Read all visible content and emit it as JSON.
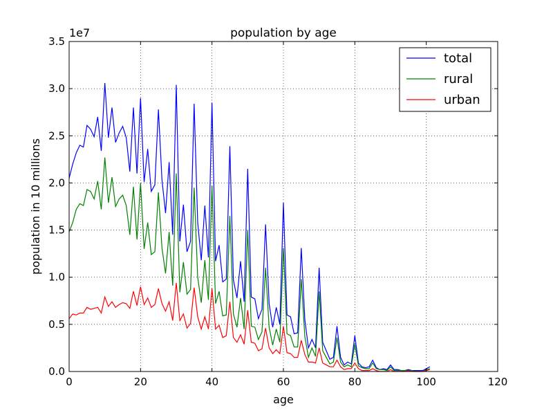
{
  "chart_data": {
    "type": "line",
    "title": "population by age",
    "xlabel": "age",
    "ylabel": "population in 10 millions",
    "y_multiplier": "1e7",
    "xlim": [
      0,
      120
    ],
    "ylim": [
      0,
      3.5
    ],
    "xticks": [
      0,
      20,
      40,
      60,
      80,
      100,
      120
    ],
    "xtick_labels": [
      "0",
      "20",
      "40",
      "60",
      "80",
      "100",
      "120"
    ],
    "yticks": [
      0,
      0.5,
      1.0,
      1.5,
      2.0,
      2.5,
      3.0,
      3.5
    ],
    "ytick_labels": [
      "0.0",
      "0.5",
      "1.0",
      "1.5",
      "2.0",
      "2.5",
      "3.0",
      "3.5"
    ],
    "grid": true,
    "legend_position": "top-right",
    "x": [
      0,
      1,
      2,
      3,
      4,
      5,
      6,
      7,
      8,
      9,
      10,
      11,
      12,
      13,
      14,
      15,
      16,
      17,
      18,
      19,
      20,
      21,
      22,
      23,
      24,
      25,
      26,
      27,
      28,
      29,
      30,
      31,
      32,
      33,
      34,
      35,
      36,
      37,
      38,
      39,
      40,
      41,
      42,
      43,
      44,
      45,
      46,
      47,
      48,
      49,
      50,
      51,
      52,
      53,
      54,
      55,
      56,
      57,
      58,
      59,
      60,
      61,
      62,
      63,
      64,
      65,
      66,
      67,
      68,
      69,
      70,
      71,
      72,
      73,
      74,
      75,
      76,
      77,
      78,
      79,
      80,
      81,
      82,
      83,
      84,
      85,
      86,
      87,
      88,
      89,
      90,
      91,
      92,
      93,
      94,
      95,
      96,
      97,
      98,
      99,
      100,
      101
    ],
    "series": [
      {
        "name": "total",
        "color": "#0000ff",
        "values": [
          2.05,
          2.2,
          2.32,
          2.4,
          2.38,
          2.61,
          2.57,
          2.49,
          2.7,
          2.34,
          3.06,
          2.48,
          2.8,
          2.43,
          2.53,
          2.6,
          2.48,
          2.12,
          2.8,
          2.1,
          2.9,
          2.01,
          2.36,
          1.91,
          1.98,
          2.78,
          2.03,
          1.68,
          2.22,
          1.45,
          3.04,
          1.38,
          1.77,
          1.27,
          1.38,
          2.84,
          1.58,
          1.18,
          1.76,
          1.21,
          2.85,
          1.17,
          1.34,
          0.95,
          0.98,
          2.39,
          0.97,
          0.78,
          1.17,
          0.74,
          2.15,
          0.79,
          0.77,
          0.56,
          0.66,
          1.56,
          0.72,
          0.47,
          0.68,
          0.5,
          1.79,
          0.6,
          0.58,
          0.4,
          0.41,
          1.31,
          0.55,
          0.25,
          0.34,
          0.25,
          1.1,
          0.31,
          0.22,
          0.13,
          0.15,
          0.48,
          0.15,
          0.07,
          0.1,
          0.08,
          0.38,
          0.09,
          0.05,
          0.04,
          0.05,
          0.12,
          0.04,
          0.02,
          0.03,
          0.02,
          0.07,
          0.02,
          0.02,
          0.01,
          0.01,
          0.02,
          0.01,
          0.01,
          0.01,
          0.01,
          0.03,
          0.05
        ]
      },
      {
        "name": "rural",
        "color": "#008000",
        "values": [
          1.48,
          1.58,
          1.72,
          1.78,
          1.76,
          1.93,
          1.91,
          1.83,
          2.02,
          1.72,
          2.27,
          1.79,
          2.06,
          1.75,
          1.83,
          1.87,
          1.76,
          1.45,
          1.96,
          1.4,
          2.0,
          1.3,
          1.58,
          1.24,
          1.27,
          1.9,
          1.31,
          1.04,
          1.48,
          0.91,
          2.1,
          0.84,
          1.16,
          0.82,
          0.87,
          1.95,
          1.0,
          0.73,
          1.18,
          0.76,
          1.97,
          0.72,
          0.85,
          0.59,
          0.6,
          1.65,
          0.61,
          0.47,
          0.78,
          0.45,
          1.5,
          0.48,
          0.47,
          0.34,
          0.42,
          1.1,
          0.47,
          0.28,
          0.45,
          0.31,
          1.31,
          0.4,
          0.38,
          0.26,
          0.26,
          0.98,
          0.37,
          0.15,
          0.25,
          0.16,
          0.85,
          0.22,
          0.15,
          0.08,
          0.1,
          0.36,
          0.1,
          0.05,
          0.07,
          0.05,
          0.29,
          0.06,
          0.04,
          0.03,
          0.03,
          0.09,
          0.03,
          0.02,
          0.02,
          0.01,
          0.05,
          0.01,
          0.01,
          0.01,
          0.01,
          0.01,
          0.01,
          0.0,
          0.0,
          0.0,
          0.02,
          0.03
        ]
      },
      {
        "name": "urban",
        "color": "#ff0000",
        "values": [
          0.56,
          0.61,
          0.6,
          0.62,
          0.62,
          0.68,
          0.66,
          0.67,
          0.68,
          0.62,
          0.79,
          0.69,
          0.74,
          0.68,
          0.71,
          0.73,
          0.72,
          0.67,
          0.85,
          0.7,
          0.9,
          0.71,
          0.78,
          0.68,
          0.71,
          0.88,
          0.72,
          0.64,
          0.74,
          0.54,
          0.94,
          0.54,
          0.61,
          0.46,
          0.51,
          0.89,
          0.58,
          0.45,
          0.58,
          0.45,
          0.88,
          0.45,
          0.49,
          0.36,
          0.38,
          0.74,
          0.36,
          0.31,
          0.39,
          0.29,
          0.65,
          0.31,
          0.3,
          0.22,
          0.24,
          0.46,
          0.25,
          0.19,
          0.23,
          0.19,
          0.48,
          0.2,
          0.19,
          0.15,
          0.15,
          0.33,
          0.18,
          0.1,
          0.1,
          0.09,
          0.25,
          0.09,
          0.07,
          0.05,
          0.05,
          0.12,
          0.05,
          0.02,
          0.03,
          0.03,
          0.09,
          0.03,
          0.01,
          0.01,
          0.01,
          0.03,
          0.01,
          0.0,
          0.0,
          0.0,
          0.02,
          0.0,
          0.0,
          0.0,
          0.0,
          0.01,
          0.0,
          0.0,
          0.0,
          0.0,
          0.01,
          0.02
        ]
      }
    ]
  }
}
